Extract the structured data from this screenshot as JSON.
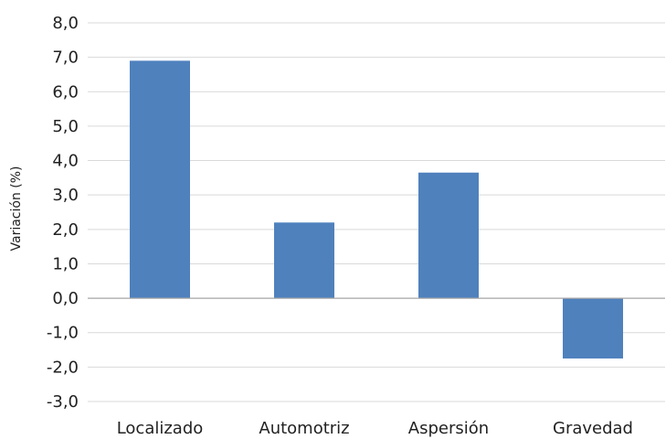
{
  "chart_data": {
    "type": "bar",
    "categories": [
      "Localizado",
      "Automotriz",
      "Aspersión",
      "Gravedad"
    ],
    "values": [
      6.9,
      2.2,
      3.65,
      -1.75
    ],
    "ylabel": "Variación (%)",
    "xlabel": "",
    "ylim": [
      -3.0,
      8.0
    ],
    "yticks": [
      "-3,0",
      "-2,0",
      "-1,0",
      "0,0",
      "1,0",
      "2,0",
      "3,0",
      "4,0",
      "5,0",
      "6,0",
      "7,0",
      "8,0"
    ],
    "grid": true,
    "legend": "none",
    "bar_color": "#4f81bd",
    "grid_color": "#d9d9d9",
    "zero_line_color": "#a6a6a6"
  }
}
